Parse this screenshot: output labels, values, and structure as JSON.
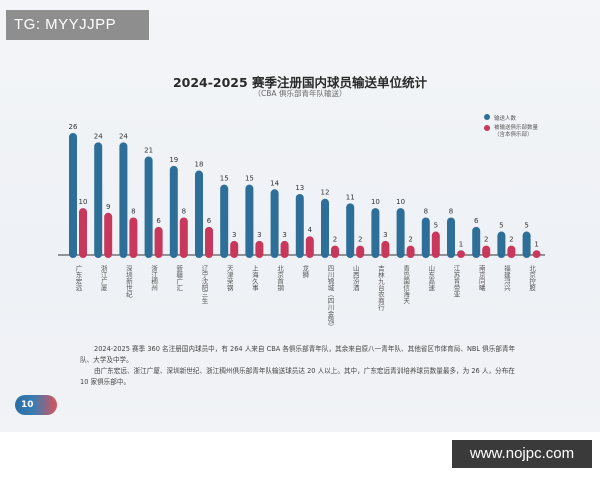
{
  "watermarks": {
    "top_left": "TG: MYYJJPP",
    "bottom_right": "www.nojpc.com"
  },
  "page_number": "10",
  "paragraphs": [
    "2024-2025 赛季 360 名注册国内球员中，有 264 人来自 CBA 各俱乐部青年队，其余来自原八一青年队、其他省区市体育局、NBL 俱乐部青年队、大学及中学。",
    "由广东宏远、浙江广厦、深圳新世纪、浙江稠州俱乐部青年队输送球员达 20 人以上。其中，广东宏远青训培养球员数量最多，为 26 人，分布在 10 家俱乐部中。"
  ],
  "chart_data": {
    "type": "bar",
    "title": "2024-2025 赛季注册国内球员输送单位统计",
    "subtitle": "（CBA 俱乐部青年队输送）",
    "legend_position": "top-right",
    "grid": false,
    "ylim": [
      0,
      26
    ],
    "categories": [
      "广东宏远",
      "浙江广厦",
      "深圳新世纪",
      "浙江稠州",
      "新疆广汇",
      "辽宁沈阳三生",
      "天津荣钢",
      "上海久事",
      "北京首钢",
      "龙狮",
      "四川锦城（四川金强）",
      "山西汾酒",
      "吉林九台农商行",
      "青岛国信海天",
      "山东高速",
      "江苏肯帝亚",
      "南京同曦",
      "福建浔兴",
      "北京控股"
    ],
    "series": [
      {
        "name": "输送人数",
        "color": "#2e6f9a",
        "values": [
          26,
          24,
          24,
          21,
          19,
          18,
          15,
          15,
          14,
          13,
          12,
          11,
          10,
          10,
          8,
          8,
          6,
          5,
          5
        ]
      },
      {
        "name": "被输送俱乐部数量（含本俱乐部）",
        "color": "#c8385c",
        "values": [
          10,
          9,
          8,
          6,
          8,
          6,
          3,
          3,
          3,
          4,
          2,
          2,
          3,
          2,
          5,
          1,
          2,
          2,
          1
        ]
      }
    ]
  }
}
